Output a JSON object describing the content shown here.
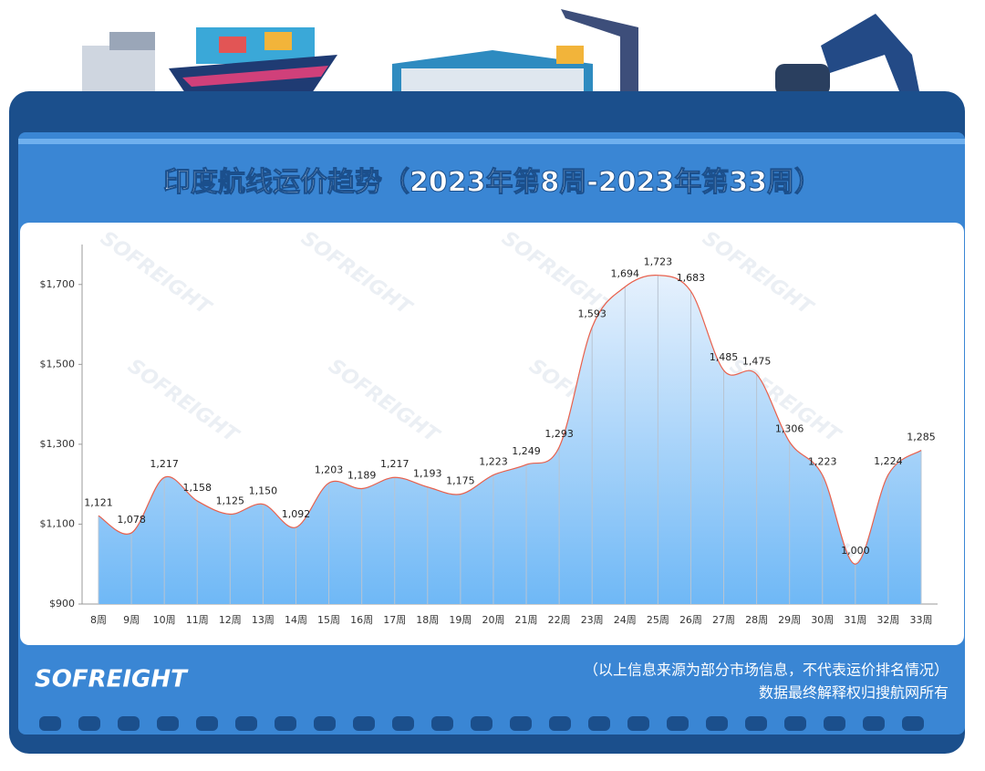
{
  "title": "印度航线运价趋势（2023年第8周-2023年第33周）",
  "chart_data": {
    "type": "line",
    "categories": [
      "8周",
      "9周",
      "10周",
      "11周",
      "12周",
      "13周",
      "14周",
      "15周",
      "16周",
      "17周",
      "18周",
      "19周",
      "20周",
      "21周",
      "22周",
      "23周",
      "24周",
      "25周",
      "26周",
      "27周",
      "28周",
      "29周",
      "30周",
      "31周",
      "32周",
      "33周"
    ],
    "series": [
      {
        "color": "#e8604c",
        "values": [
          1121,
          1078,
          1217,
          1158,
          1125,
          1150,
          1092,
          1203,
          1189,
          1217,
          1193,
          1175,
          1223,
          1249,
          1293,
          1593,
          1694,
          1723,
          1683,
          1485,
          1475,
          1306,
          1223,
          1000,
          1224,
          1285
        ],
        "value_labels": [
          "1,121",
          "1,078",
          "1,217",
          "1,158",
          "1,125",
          "1,150",
          "1,092",
          "1,203",
          "1,189",
          "1,217",
          "1,193",
          "1,175",
          "1,223",
          "1,249",
          "1,293",
          "1,593",
          "1,694",
          "1,723",
          "1,683",
          "1,485",
          "1,475",
          "1,306",
          "1,223",
          "1,000",
          "1,224",
          "1,285"
        ]
      }
    ],
    "ylim": [
      900,
      1800
    ],
    "yticks": [
      {
        "value": 900,
        "label": "$900"
      },
      {
        "value": 1100,
        "label": "$1,100"
      },
      {
        "value": 1300,
        "label": "$1,300"
      },
      {
        "value": 1500,
        "label": "$1,500"
      },
      {
        "value": 1700,
        "label": "$1,700"
      }
    ]
  },
  "watermark": "SOFREIGHT",
  "footer": {
    "logo": "SOFREIGHT",
    "note": "（以上信息来源为部分市场信息，不代表运价排名情况）",
    "rights": "数据最终解释权归搜航网所有"
  }
}
